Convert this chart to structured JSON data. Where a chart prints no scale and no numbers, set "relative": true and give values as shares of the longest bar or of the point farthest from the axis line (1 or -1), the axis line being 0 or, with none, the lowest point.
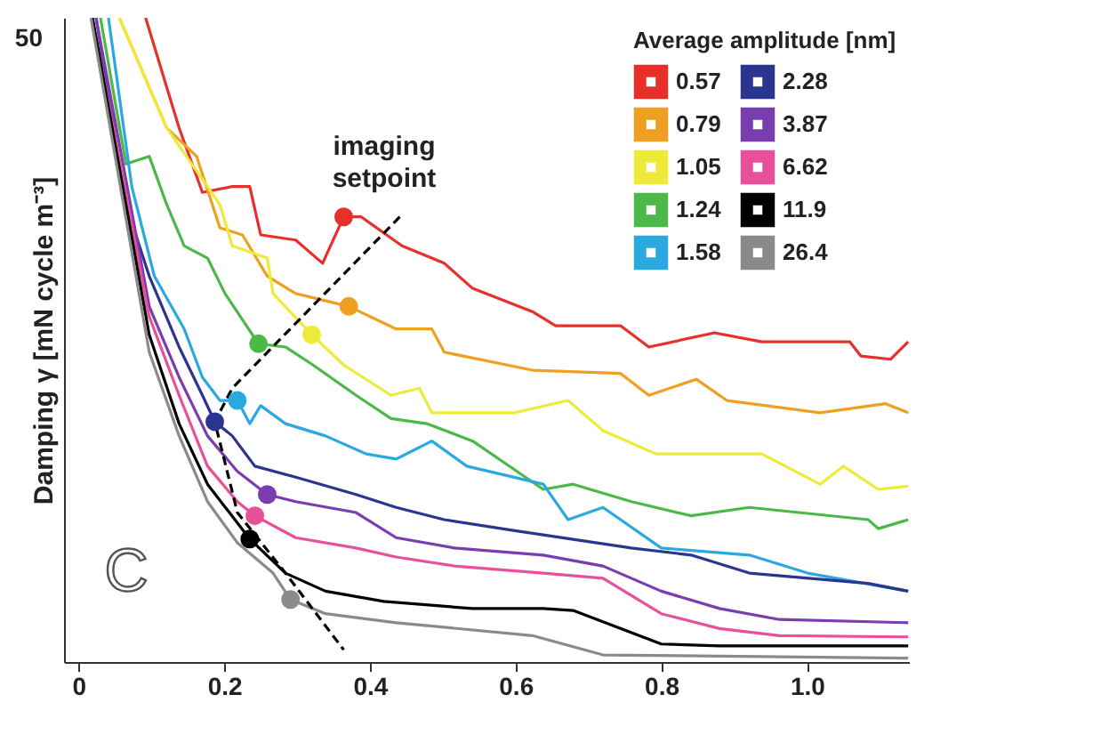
{
  "chart_data": {
    "type": "line",
    "relative": true,
    "xlabel": null,
    "ylabel": "Damping γ [mN cycle m⁻³]",
    "legend_title": "Average amplitude [nm]",
    "legend": "top right",
    "grid": false,
    "line_style": "solid",
    "xlim": [
      -0.02,
      1.14
    ],
    "xticks": [
      0,
      0.2,
      0.4,
      0.6,
      0.8,
      {
        "value": 1.0,
        "label": "1.0"
      }
    ],
    "annotations": [
      "imaging setpoint",
      "C",
      "50"
    ],
    "series": [
      {
        "name": "0.57",
        "color": "#e8302a",
        "x": [
          0.092,
          0.138,
          0.17,
          0.211,
          0.235,
          0.25,
          0.298,
          0.335,
          0.364,
          0.388,
          0.444,
          0.502,
          0.541,
          0.623,
          0.655,
          0.744,
          0.783,
          0.873,
          0.938,
          1.059,
          1.074,
          1.115,
          1.139
        ],
        "values": [
          1.0,
          0.829,
          0.729,
          0.738,
          0.738,
          0.663,
          0.655,
          0.619,
          0.691,
          0.691,
          0.646,
          0.619,
          0.58,
          0.544,
          0.522,
          0.522,
          0.489,
          0.511,
          0.497,
          0.497,
          0.475,
          0.47,
          0.497
        ]
      },
      {
        "name": "0.79",
        "color": "#f0a020",
        "x": [
          0.056,
          0.121,
          0.162,
          0.194,
          0.225,
          0.259,
          0.298,
          0.371,
          0.436,
          0.485,
          0.502,
          0.623,
          0.744,
          0.783,
          0.848,
          0.89,
          1.018,
          1.108,
          1.139
        ],
        "values": [
          1.0,
          0.829,
          0.785,
          0.674,
          0.663,
          0.599,
          0.572,
          0.552,
          0.517,
          0.517,
          0.481,
          0.453,
          0.448,
          0.414,
          0.439,
          0.406,
          0.387,
          0.401,
          0.387
        ]
      },
      {
        "name": "1.05",
        "color": "#eeea3a",
        "x": [
          0.056,
          0.121,
          0.194,
          0.211,
          0.259,
          0.267,
          0.32,
          0.364,
          0.429,
          0.468,
          0.485,
          0.599,
          0.672,
          0.72,
          0.793,
          0.938,
          1.018,
          1.05,
          1.098,
          1.139
        ],
        "values": [
          1.0,
          0.829,
          0.71,
          0.646,
          0.627,
          0.572,
          0.508,
          0.461,
          0.414,
          0.425,
          0.387,
          0.387,
          0.406,
          0.359,
          0.323,
          0.323,
          0.276,
          0.304,
          0.268,
          0.273
        ]
      },
      {
        "name": "1.24",
        "color": "#4cb848",
        "x": [
          0.03,
          0.065,
          0.097,
          0.121,
          0.145,
          0.177,
          0.201,
          0.247,
          0.284,
          0.322,
          0.381,
          0.429,
          0.478,
          0.541,
          0.638,
          0.679,
          0.759,
          0.841,
          0.921,
          1.084,
          1.098,
          1.139
        ],
        "values": [
          1.0,
          0.773,
          0.785,
          0.71,
          0.646,
          0.627,
          0.572,
          0.494,
          0.489,
          0.461,
          0.414,
          0.378,
          0.37,
          0.343,
          0.268,
          0.276,
          0.249,
          0.227,
          0.24,
          0.221,
          0.207,
          0.221
        ]
      },
      {
        "name": "1.58",
        "color": "#2aa8e0",
        "x": [
          0.041,
          0.073,
          0.104,
          0.145,
          0.17,
          0.194,
          0.218,
          0.235,
          0.25,
          0.284,
          0.339,
          0.395,
          0.436,
          0.485,
          0.533,
          0.638,
          0.672,
          0.72,
          0.8,
          0.921,
          1.001,
          1.139
        ],
        "values": [
          1.0,
          0.738,
          0.599,
          0.517,
          0.442,
          0.406,
          0.406,
          0.37,
          0.398,
          0.37,
          0.351,
          0.323,
          0.315,
          0.343,
          0.304,
          0.276,
          0.221,
          0.24,
          0.177,
          0.166,
          0.138,
          0.11
        ]
      },
      {
        "name": "2.28",
        "color": "#2a3590",
        "x": [
          0.024,
          0.065,
          0.097,
          0.138,
          0.17,
          0.187,
          0.211,
          0.242,
          0.298,
          0.381,
          0.436,
          0.502,
          0.599,
          0.759,
          0.841,
          0.921,
          1.084,
          1.139
        ],
        "values": [
          1.0,
          0.71,
          0.599,
          0.489,
          0.414,
          0.373,
          0.351,
          0.304,
          0.287,
          0.26,
          0.24,
          0.221,
          0.204,
          0.177,
          0.166,
          0.138,
          0.122,
          0.11
        ]
      },
      {
        "name": "3.87",
        "color": "#7a3db0",
        "x": [
          0.024,
          0.097,
          0.138,
          0.177,
          0.218,
          0.259,
          0.298,
          0.381,
          0.436,
          0.516,
          0.638,
          0.72,
          0.8,
          0.88,
          0.962,
          1.139
        ],
        "values": [
          1.0,
          0.552,
          0.442,
          0.351,
          0.296,
          0.26,
          0.249,
          0.232,
          0.193,
          0.177,
          0.166,
          0.149,
          0.11,
          0.083,
          0.066,
          0.061
        ]
      },
      {
        "name": "6.62",
        "color": "#e8509a",
        "x": [
          0.019,
          0.097,
          0.138,
          0.177,
          0.218,
          0.242,
          0.298,
          0.381,
          0.436,
          0.516,
          0.638,
          0.72,
          0.8,
          0.88,
          0.962,
          1.139
        ],
        "values": [
          1.0,
          0.536,
          0.414,
          0.304,
          0.249,
          0.227,
          0.193,
          0.177,
          0.163,
          0.149,
          0.138,
          0.13,
          0.075,
          0.052,
          0.041,
          0.039
        ]
      },
      {
        "name": "11.9",
        "color": "#000000",
        "x": [
          0.019,
          0.097,
          0.138,
          0.177,
          0.235,
          0.284,
          0.339,
          0.419,
          0.541,
          0.638,
          0.679,
          0.8,
          0.88,
          1.139
        ],
        "values": [
          1.0,
          0.508,
          0.37,
          0.276,
          0.191,
          0.138,
          0.11,
          0.094,
          0.083,
          0.083,
          0.08,
          0.028,
          0.025,
          0.025
        ]
      },
      {
        "name": "26.4",
        "color": "#8a8a8a",
        "x": [
          0.017,
          0.097,
          0.138,
          0.177,
          0.218,
          0.267,
          0.291,
          0.339,
          0.436,
          0.623,
          0.72,
          1.139
        ],
        "values": [
          1.0,
          0.481,
          0.351,
          0.249,
          0.185,
          0.138,
          0.097,
          0.075,
          0.061,
          0.041,
          0.011,
          0.006
        ]
      },
      {
        "type": "line",
        "line_style": "dashed",
        "color": "#000000",
        "x": [
          0.441,
          0.211,
          0.187,
          0.218,
          0.284,
          0.364
        ],
        "values": [
          0.691,
          0.425,
          0.373,
          0.232,
          0.138,
          0.019
        ]
      },
      {
        "type": "scatter",
        "marker": "circle",
        "x": [
          0.364,
          0.371,
          0.32,
          0.247,
          0.218,
          0.187,
          0.259,
          0.242,
          0.235,
          0.291
        ],
        "values": [
          0.691,
          0.552,
          0.508,
          0.494,
          0.406,
          0.373,
          0.26,
          0.227,
          0.191,
          0.097
        ],
        "colors": [
          "#e8302a",
          "#f0a020",
          "#eeea3a",
          "#4cb848",
          "#2aa8e0",
          "#2a3590",
          "#7a3db0",
          "#e8509a",
          "#000000",
          "#8a8a8a"
        ]
      }
    ]
  }
}
